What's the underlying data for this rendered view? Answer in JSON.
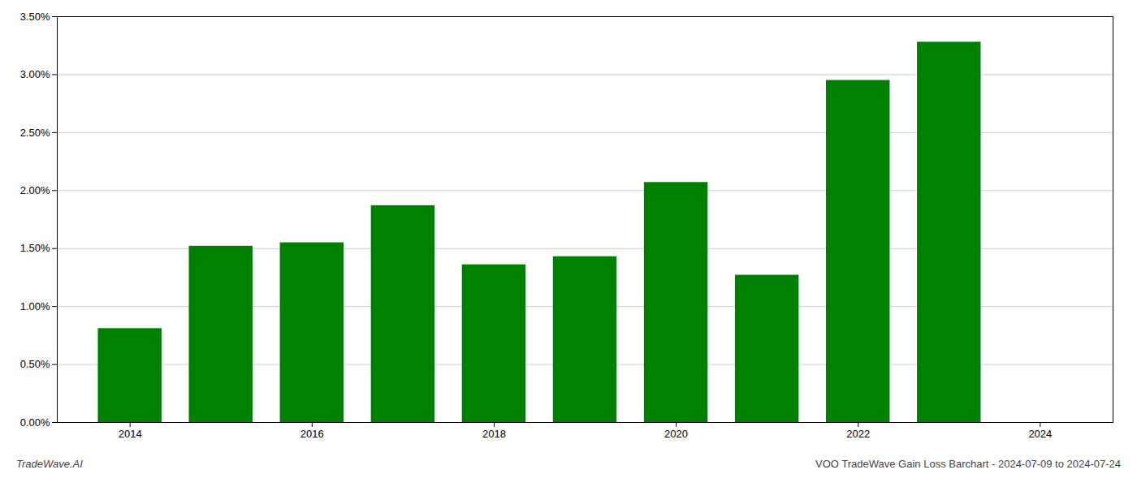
{
  "chart_data": {
    "type": "bar",
    "x": [
      2014,
      2015,
      2016,
      2017,
      2018,
      2019,
      2020,
      2021,
      2022,
      2023
    ],
    "values": [
      0.0081,
      0.0152,
      0.0155,
      0.0187,
      0.0136,
      0.0143,
      0.0207,
      0.0127,
      0.0295,
      0.0328
    ],
    "color": "#008000",
    "xlim": [
      2013.2,
      2024.8
    ],
    "xticks": [
      2014,
      2016,
      2018,
      2020,
      2022,
      2024
    ],
    "ylim": [
      0.0,
      0.035
    ],
    "yticks": [
      {
        "value": 0.0,
        "label": "0.00%"
      },
      {
        "value": 0.005,
        "label": "0.50%"
      },
      {
        "value": 0.01,
        "label": "1.00%"
      },
      {
        "value": 0.015,
        "label": "1.50%"
      },
      {
        "value": 0.02,
        "label": "2.00%"
      },
      {
        "value": 0.025,
        "label": "2.50%"
      },
      {
        "value": 0.03,
        "label": "3.00%"
      },
      {
        "value": 0.035,
        "label": "3.50%"
      }
    ],
    "grid": true,
    "annotations": [
      "TradeWave.AI",
      "VOO TradeWave Gain Loss Barchart - 2024-07-09 to 2024-07-24"
    ]
  }
}
